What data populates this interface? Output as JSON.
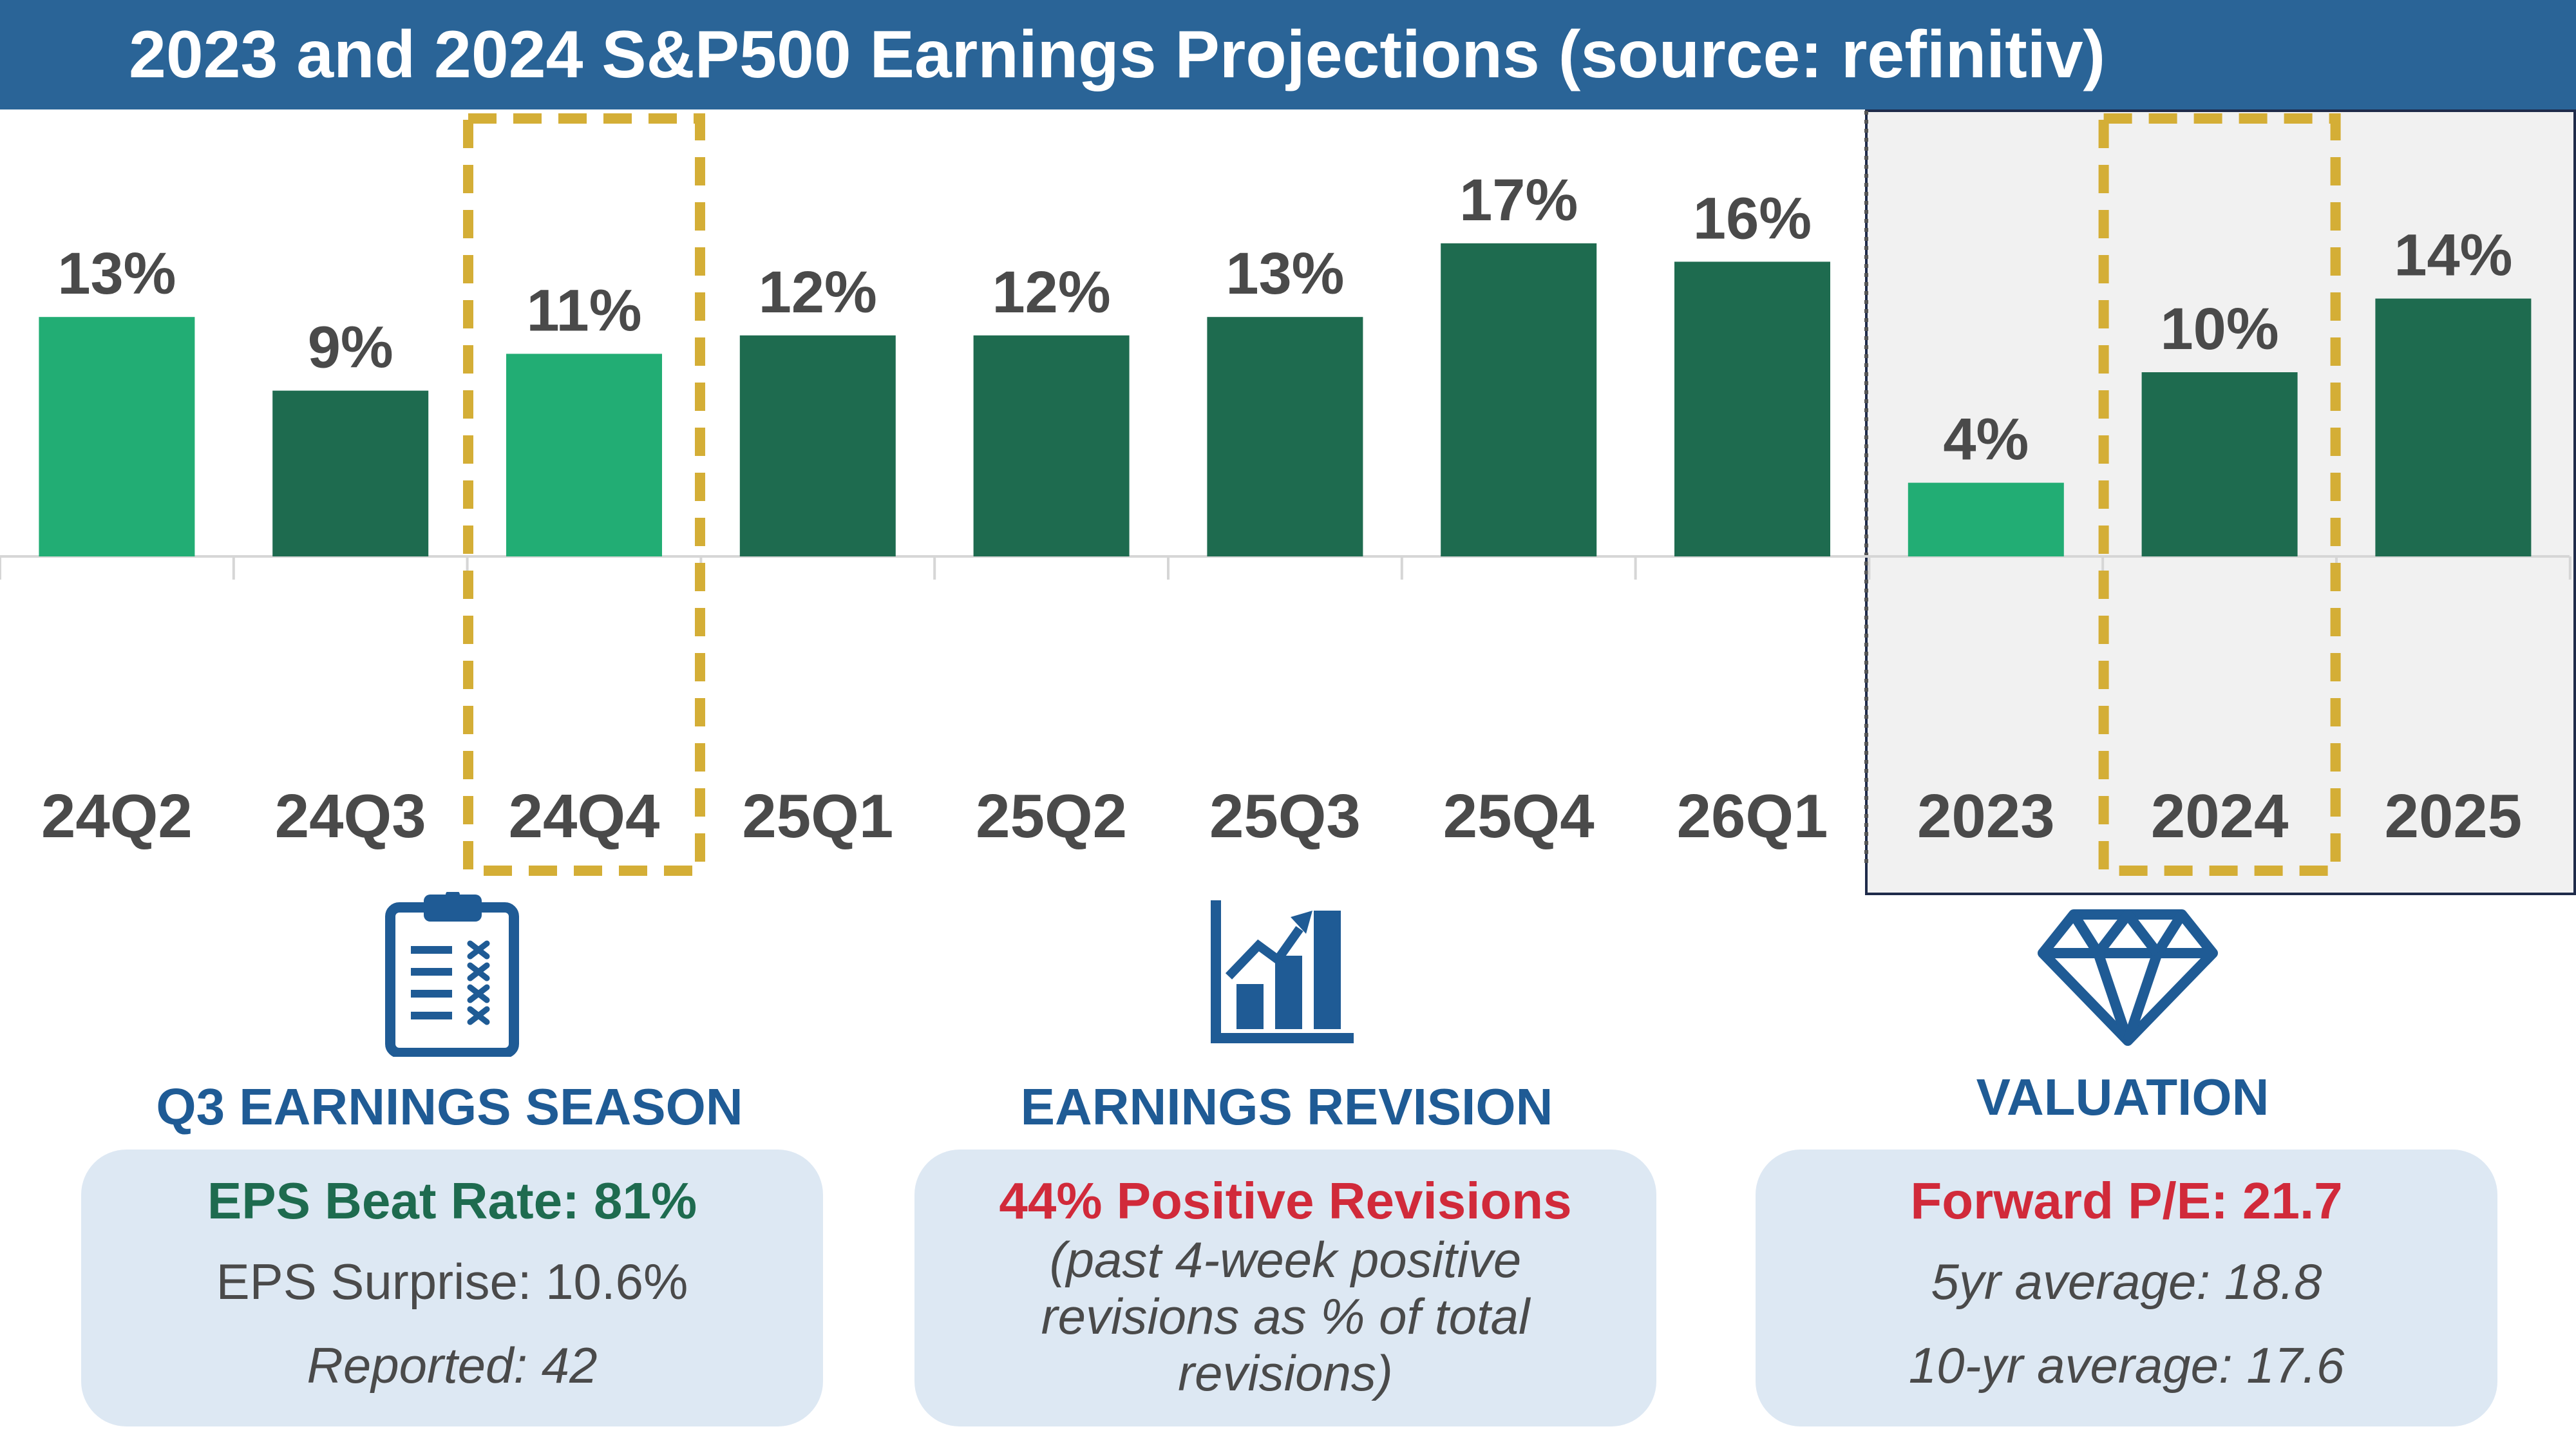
{
  "title": "2023 and 2024 S&P500 Earnings Projections (source: refinitiv)",
  "chart_data": {
    "type": "bar",
    "categories": [
      "24Q2",
      "24Q3",
      "24Q4",
      "25Q1",
      "25Q2",
      "25Q3",
      "25Q4",
      "26Q1",
      "2023",
      "2024",
      "2025"
    ],
    "values": [
      13,
      9,
      11,
      12,
      12,
      13,
      17,
      16,
      4,
      10,
      14
    ],
    "data_labels": [
      "13%",
      "9%",
      "11%",
      "12%",
      "12%",
      "13%",
      "17%",
      "16%",
      "4%",
      "10%",
      "14%"
    ],
    "bar_colors": [
      "#22ad74",
      "#1e6b4f",
      "#22ad74",
      "#1e6b4f",
      "#1e6b4f",
      "#1e6b4f",
      "#1e6b4f",
      "#1e6b4f",
      "#22ad74",
      "#1e6b4f",
      "#1e6b4f"
    ],
    "highlighted_categories": [
      "24Q4",
      "2024"
    ],
    "shaded_group": [
      "2023",
      "2024",
      "2025"
    ],
    "unit": "%"
  },
  "colors": {
    "title_bg": "#2a6497",
    "light_green": "#22ad74",
    "dark_green": "#1e6b4f",
    "highlight_box": "#d4ae36",
    "shaded_bg": "#f1f1f1",
    "navy": "#1f5b95",
    "green_text": "#1e6b4f",
    "red_text": "#d12a3a",
    "card_bg": "#dde8f3"
  },
  "sections": {
    "earnings_season": {
      "icon": "clipboard-checklist-icon",
      "title": "Q3 EARNINGS SEASON",
      "headline": "EPS Beat Rate: 81%",
      "line1": "EPS Surprise: 10.6%",
      "line2": "Reported: 42"
    },
    "earnings_revision": {
      "icon": "bar-chart-rising-icon",
      "title": "EARNINGS REVISION",
      "headline": "44% Positive Revisions",
      "line1": "(past 4-week positive",
      "line2": "revisions as % of total",
      "line3": "revisions)"
    },
    "valuation": {
      "icon": "diamond-icon",
      "title": "VALUATION",
      "headline": "Forward P/E: 21.7",
      "line1": "5yr average: 18.8",
      "line2": "10-yr average: 17.6"
    }
  }
}
